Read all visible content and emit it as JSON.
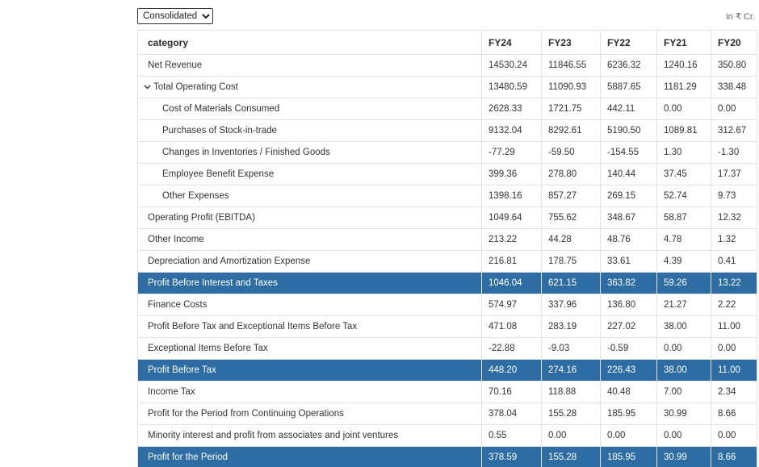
{
  "toolbar": {
    "select": {
      "options": [
        "Consolidated"
      ],
      "selected": "Consolidated"
    },
    "unit_label": "in ₹ Cr."
  },
  "colors": {
    "highlight_row": "#2e6da4",
    "highlight_text": "#ffffff",
    "border": "#e2e2e2",
    "body_text": "#333333"
  },
  "icons": {
    "chevron_down": "chevron-down-icon"
  },
  "table": {
    "columns": [
      "category",
      "FY24",
      "FY23",
      "FY22",
      "FY21",
      "FY20"
    ],
    "rows": [
      {
        "label": "Net Revenue",
        "indent": 1,
        "chevron": false,
        "highlight": false,
        "values": [
          "14530.24",
          "11846.55",
          "6236.32",
          "1240.16",
          "350.80"
        ]
      },
      {
        "label": "Total Operating Cost",
        "indent": 0,
        "chevron": true,
        "highlight": false,
        "values": [
          "13480.59",
          "11090.93",
          "5887.65",
          "1181.29",
          "338.48"
        ]
      },
      {
        "label": "Cost of Materials Consumed",
        "indent": 2,
        "chevron": false,
        "highlight": false,
        "values": [
          "2628.33",
          "1721.75",
          "442.11",
          "0.00",
          "0.00"
        ]
      },
      {
        "label": "Purchases of Stock-in-trade",
        "indent": 2,
        "chevron": false,
        "highlight": false,
        "values": [
          "9132.04",
          "8292.61",
          "5190.50",
          "1089.81",
          "312.67"
        ]
      },
      {
        "label": "Changes in Inventories / Finished Goods",
        "indent": 2,
        "chevron": false,
        "highlight": false,
        "values": [
          "-77.29",
          "-59.50",
          "-154.55",
          "1.30",
          "-1.30"
        ]
      },
      {
        "label": "Employee Benefit Expense",
        "indent": 2,
        "chevron": false,
        "highlight": false,
        "values": [
          "399.36",
          "278.80",
          "140.44",
          "37.45",
          "17.37"
        ]
      },
      {
        "label": "Other Expenses",
        "indent": 2,
        "chevron": false,
        "highlight": false,
        "values": [
          "1398.16",
          "857.27",
          "269.15",
          "52.74",
          "9.73"
        ]
      },
      {
        "label": "Operating Profit (EBITDA)",
        "indent": 1,
        "chevron": false,
        "highlight": false,
        "values": [
          "1049.64",
          "755.62",
          "348.67",
          "58.87",
          "12.32"
        ]
      },
      {
        "label": "Other Income",
        "indent": 1,
        "chevron": false,
        "highlight": false,
        "values": [
          "213.22",
          "44.28",
          "48.76",
          "4.78",
          "1.32"
        ]
      },
      {
        "label": "Depreciation and Amortization Expense",
        "indent": 1,
        "chevron": false,
        "highlight": false,
        "values": [
          "216.81",
          "178.75",
          "33.61",
          "4.39",
          "0.41"
        ]
      },
      {
        "label": "Profit Before Interest and Taxes",
        "indent": 1,
        "chevron": false,
        "highlight": true,
        "values": [
          "1046.04",
          "621.15",
          "363.82",
          "59.26",
          "13.22"
        ]
      },
      {
        "label": "Finance Costs",
        "indent": 1,
        "chevron": false,
        "highlight": false,
        "values": [
          "574.97",
          "337.96",
          "136.80",
          "21.27",
          "2.22"
        ]
      },
      {
        "label": "Profit Before Tax and Exceptional Items Before Tax",
        "indent": 1,
        "chevron": false,
        "highlight": false,
        "values": [
          "471.08",
          "283.19",
          "227.02",
          "38.00",
          "11.00"
        ]
      },
      {
        "label": "Exceptional Items Before Tax",
        "indent": 1,
        "chevron": false,
        "highlight": false,
        "values": [
          "-22.88",
          "-9.03",
          "-0.59",
          "0.00",
          "0.00"
        ]
      },
      {
        "label": "Profit Before Tax",
        "indent": 1,
        "chevron": false,
        "highlight": true,
        "values": [
          "448.20",
          "274.16",
          "226.43",
          "38.00",
          "11.00"
        ]
      },
      {
        "label": "Income Tax",
        "indent": 1,
        "chevron": false,
        "highlight": false,
        "values": [
          "70.16",
          "118.88",
          "40.48",
          "7.00",
          "2.34"
        ]
      },
      {
        "label": "Profit for the Period from Continuing Operations",
        "indent": 1,
        "chevron": false,
        "highlight": false,
        "values": [
          "378.04",
          "155.28",
          "185.95",
          "30.99",
          "8.66"
        ]
      },
      {
        "label": "Minority interest and profit from associates and joint ventures",
        "indent": 1,
        "chevron": false,
        "highlight": false,
        "values": [
          "0.55",
          "0.00",
          "0.00",
          "0.00",
          "0.00"
        ]
      },
      {
        "label": "Profit for the Period",
        "indent": 1,
        "chevron": false,
        "highlight": true,
        "values": [
          "378.59",
          "155.28",
          "185.95",
          "30.99",
          "8.66"
        ]
      }
    ]
  }
}
